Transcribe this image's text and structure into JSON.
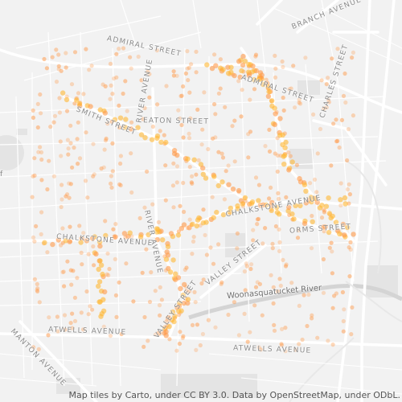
{
  "map": {
    "streets": {
      "admiral_west": "ADMIRAL STREET",
      "admiral_east": "ADMIRAL STREET",
      "branch": "BRANCH AVENUE",
      "charles": "CHARLES STREET",
      "smith": "SMITH STREET",
      "river": "RIVER AVENUE",
      "eaton": "EATON STREET",
      "chalkstone_west": "CHALKSTONE AVENUE",
      "chalkstone_east": "CHALKSTONE AVENUE",
      "orms": "ORMS STREET",
      "river_lower": "RIVER AVENUE",
      "valley_mid": "VALLEY STREET",
      "valley_lower": "VALLEY STREET",
      "atwells_west": "ATWELLS AVENUE",
      "atwells_east": "ATWELLS AVENUE",
      "manton": "MANTON AVENUE"
    },
    "water": {
      "river": "Woonasquatucket River"
    },
    "edge_label": "f",
    "colors": {
      "background": "#f2f2f2",
      "street": "#ffffff",
      "major_road": "#ffffff",
      "label": "#8a8a8a",
      "point": "#ff9a4a",
      "point_dense": "#ffb833"
    }
  },
  "attribution": "Map tiles by Carto, under CC BY 3.0. Data by OpenStreetMap, under ODbL."
}
